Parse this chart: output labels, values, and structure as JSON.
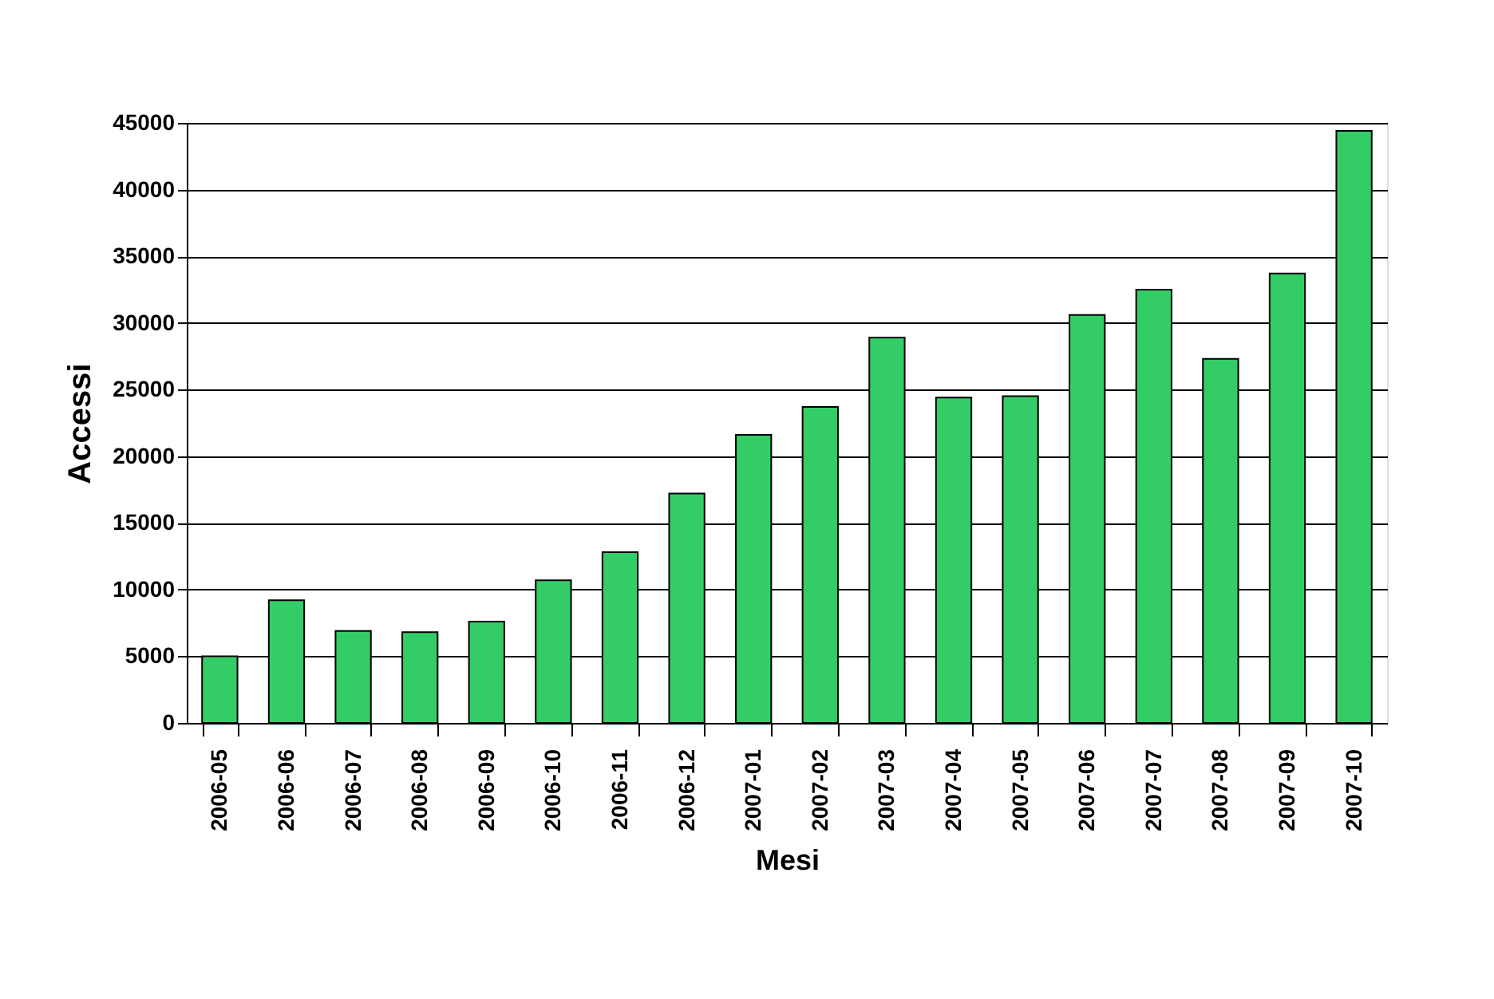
{
  "chart_data": {
    "type": "bar",
    "xlabel": "Mesi",
    "ylabel": "Accessi",
    "categories": [
      "2006-05",
      "2006-06",
      "2006-07",
      "2006-08",
      "2006-09",
      "2006-10",
      "2006-11",
      "2006-12",
      "2007-01",
      "2007-02",
      "2007-03",
      "2007-04",
      "2007-05",
      "2007-06",
      "2007-07",
      "2007-08",
      "2007-09",
      "2007-10"
    ],
    "values": [
      5000,
      9200,
      6900,
      6800,
      7600,
      10700,
      12800,
      17200,
      21600,
      23700,
      28900,
      24400,
      24500,
      30600,
      32500,
      27300,
      33700,
      44400
    ],
    "color": "#33cc66",
    "ylim": [
      0,
      45000
    ],
    "yticks": [
      0,
      5000,
      10000,
      15000,
      20000,
      25000,
      30000,
      35000,
      40000,
      45000
    ],
    "grid": "y"
  }
}
